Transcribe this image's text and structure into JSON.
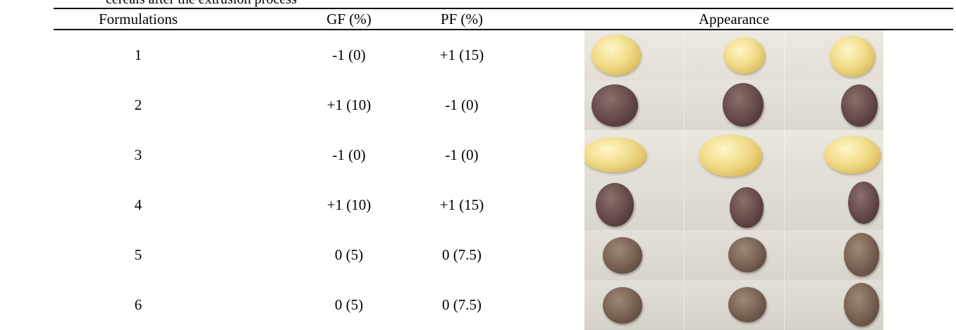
{
  "caption_fragment": "cereals after the extrusion process",
  "table": {
    "headers": [
      "Formulations",
      "GF (%)",
      "PF (%)",
      "Appearance"
    ],
    "rows": [
      {
        "formulation": "1",
        "gf": "-1 (0)",
        "pf": "+1 (15)",
        "appearance": "light-yellow-puffs"
      },
      {
        "formulation": "2",
        "gf": "+1 (10)",
        "pf": "-1 (0)",
        "appearance": "dark-brown-puffs"
      },
      {
        "formulation": "3",
        "gf": "-1 (0)",
        "pf": "-1 (0)",
        "appearance": "light-yellow-puffs"
      },
      {
        "formulation": "4",
        "gf": "+1 (10)",
        "pf": "+1 (15)",
        "appearance": "dark-brown-puffs"
      },
      {
        "formulation": "5",
        "gf": "0 (5)",
        "pf": "0 (7.5)",
        "appearance": "brown-puffs"
      },
      {
        "formulation": "6",
        "gf": "0 (5)",
        "pf": "0 (7.5)",
        "appearance": "brown-puffs"
      }
    ]
  }
}
